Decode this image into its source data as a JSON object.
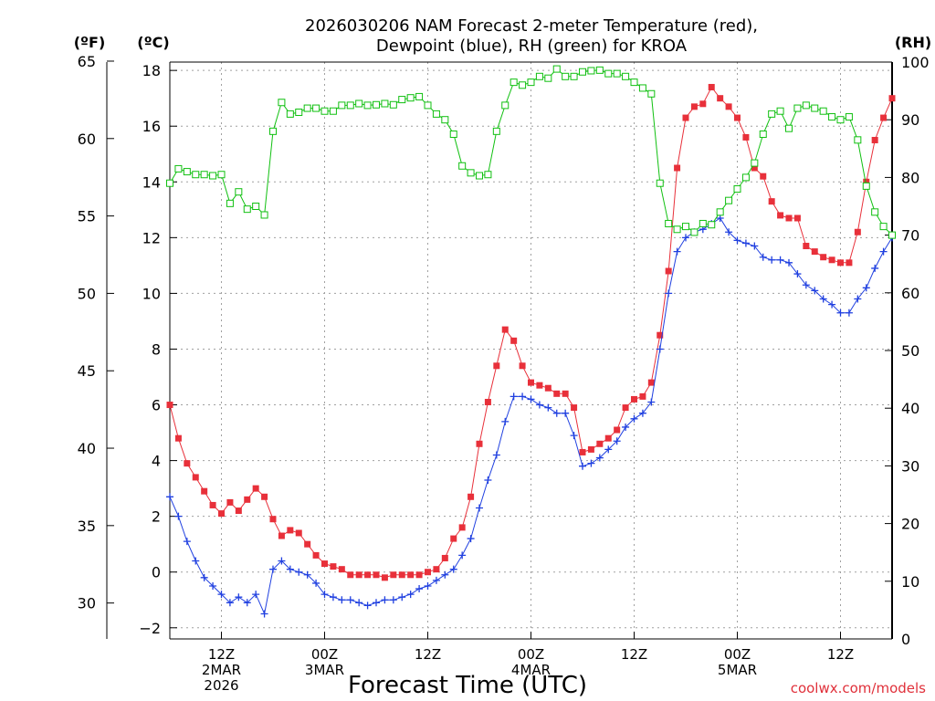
{
  "chart_data": {
    "type": "line",
    "title": [
      "2026030206 NAM Forecast 2-meter Temperature (red),",
      "Dewpoint (blue), RH (green) for KROA"
    ],
    "xlabel": "Forecast Time (UTC)",
    "credit": "coolwx.com/models",
    "units": {
      "left_outer": "(ºF)",
      "left_inner": "(ºC)",
      "right": "(RH)"
    },
    "x_range_hours": [
      0,
      84
    ],
    "x_ticks": [
      {
        "hour": 6,
        "lines": [
          "12Z",
          "2MAR",
          "2026"
        ]
      },
      {
        "hour": 18,
        "lines": [
          "00Z",
          "3MAR"
        ]
      },
      {
        "hour": 30,
        "lines": [
          "12Z"
        ]
      },
      {
        "hour": 42,
        "lines": [
          "00Z",
          "4MAR"
        ]
      },
      {
        "hour": 54,
        "lines": [
          "12Z"
        ]
      },
      {
        "hour": 66,
        "lines": [
          "00Z",
          "5MAR"
        ]
      },
      {
        "hour": 78,
        "lines": [
          "12Z"
        ]
      }
    ],
    "axes": {
      "celsius": {
        "range": [
          -2.4,
          18.3
        ],
        "ticks": [
          -2,
          0,
          2,
          4,
          6,
          8,
          10,
          12,
          14,
          16,
          18
        ],
        "labels": [
          "−2",
          "0",
          "2",
          "4",
          "6",
          "8",
          "10",
          "12",
          "14",
          "16",
          "18"
        ]
      },
      "fahrenheit": {
        "ticks": [
          30,
          35,
          40,
          45,
          50,
          55,
          60,
          65
        ],
        "labels": [
          "30",
          "35",
          "40",
          "45",
          "50",
          "55",
          "60",
          "65"
        ]
      },
      "rh": {
        "range": [
          0,
          100
        ],
        "ticks": [
          0,
          10,
          20,
          30,
          40,
          50,
          60,
          70,
          80,
          90,
          100
        ],
        "labels": [
          "0",
          "10",
          "20",
          "30",
          "40",
          "50",
          "60",
          "70",
          "80",
          "90",
          "100"
        ]
      }
    },
    "colors": {
      "temperature": "#e8303a",
      "dewpoint": "#2040e0",
      "rh": "#10c010",
      "axis": "#000000"
    },
    "series": [
      {
        "name": "Temperature (°C)",
        "axis": "celsius",
        "marker": "filled-square",
        "color": "#e8303a",
        "values": [
          6.0,
          4.8,
          3.9,
          3.4,
          2.9,
          2.4,
          2.1,
          2.5,
          2.2,
          2.6,
          3.0,
          2.7,
          1.9,
          1.3,
          1.5,
          1.4,
          1.0,
          0.6,
          0.3,
          0.2,
          0.1,
          -0.1,
          -0.1,
          -0.1,
          -0.1,
          -0.2,
          -0.1,
          -0.1,
          -0.1,
          -0.1,
          0.0,
          0.1,
          0.5,
          1.2,
          1.6,
          2.7,
          4.6,
          6.1,
          7.4,
          8.7,
          8.3,
          7.4,
          6.8,
          6.7,
          6.6,
          6.4,
          6.4,
          5.9,
          4.3,
          4.4,
          4.6,
          4.8,
          5.1,
          5.9,
          6.2,
          6.3,
          6.8,
          8.5,
          10.8,
          14.5,
          16.3,
          16.7,
          16.8,
          17.4,
          17.0,
          16.7,
          16.3,
          15.6,
          14.5,
          14.2,
          13.3,
          12.8,
          12.7,
          12.7,
          11.7,
          11.5,
          11.3,
          11.2,
          11.1,
          11.1,
          12.2,
          14.0,
          15.5,
          16.3,
          17.0
        ]
      },
      {
        "name": "Dewpoint (°C)",
        "axis": "celsius",
        "marker": "plus",
        "color": "#2040e0",
        "values": [
          2.7,
          2.0,
          1.1,
          0.4,
          -0.2,
          -0.5,
          -0.8,
          -1.1,
          -0.9,
          -1.1,
          -0.8,
          -1.5,
          0.1,
          0.4,
          0.1,
          0.0,
          -0.1,
          -0.4,
          -0.8,
          -0.9,
          -1.0,
          -1.0,
          -1.1,
          -1.2,
          -1.1,
          -1.0,
          -1.0,
          -0.9,
          -0.8,
          -0.6,
          -0.5,
          -0.3,
          -0.1,
          0.1,
          0.6,
          1.2,
          2.3,
          3.3,
          4.2,
          5.4,
          6.3,
          6.3,
          6.2,
          6.0,
          5.9,
          5.7,
          5.7,
          4.9,
          3.8,
          3.9,
          4.1,
          4.4,
          4.7,
          5.2,
          5.5,
          5.7,
          6.1,
          8.0,
          10.0,
          11.5,
          12.0,
          12.2,
          12.3,
          12.5,
          12.7,
          12.2,
          11.9,
          11.8,
          11.7,
          11.3,
          11.2,
          11.2,
          11.1,
          10.7,
          10.3,
          10.1,
          9.8,
          9.6,
          9.3,
          9.3,
          9.8,
          10.2,
          10.9,
          11.5,
          12.0
        ]
      },
      {
        "name": "RH (%)",
        "axis": "rh",
        "marker": "open-square",
        "color": "#10c010",
        "values": [
          79,
          81.5,
          81,
          80.5,
          80.5,
          80.3,
          80.5,
          75.5,
          77.5,
          74.5,
          75,
          73.5,
          88,
          93,
          91,
          91.3,
          92,
          92,
          91.5,
          91.5,
          92.5,
          92.5,
          92.8,
          92.5,
          92.6,
          92.8,
          92.6,
          93.5,
          93.8,
          94,
          92.5,
          91,
          90,
          87.5,
          82,
          80.8,
          80.3,
          80.5,
          88,
          92.5,
          96.5,
          96,
          96.5,
          97.5,
          97.2,
          98.8,
          97.5,
          97.5,
          98.3,
          98.5,
          98.6,
          98,
          98,
          97.5,
          96.5,
          95.5,
          94.5,
          79,
          72,
          71,
          71.5,
          70.5,
          72,
          71.8,
          74,
          76,
          78,
          80,
          82.5,
          87.5,
          91,
          91.5,
          88.5,
          92,
          92.5,
          92,
          91.5,
          90.5,
          90,
          90.5,
          86.5,
          78.5,
          74,
          71.5,
          70
        ]
      }
    ]
  }
}
